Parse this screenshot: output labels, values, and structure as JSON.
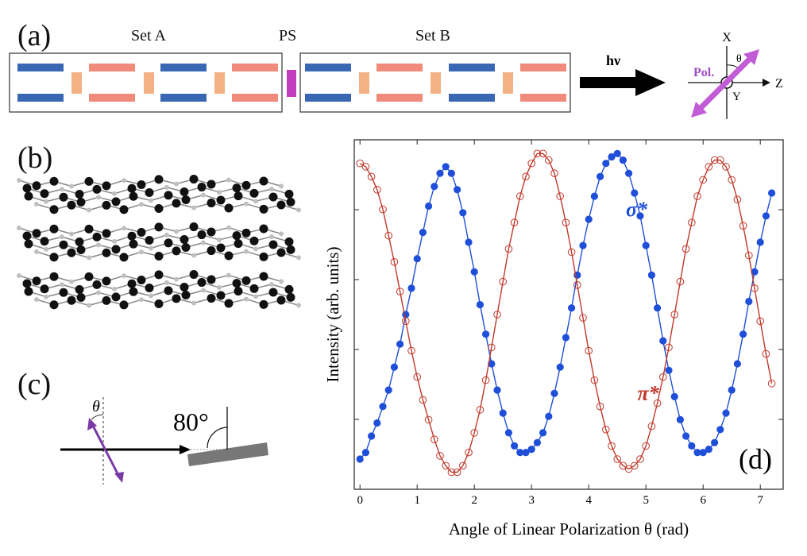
{
  "panels": {
    "a": {
      "label": "(a)",
      "set_a_label": "Set A",
      "ps_label": "PS",
      "set_b_label": "Set B",
      "arrow_label": "hν",
      "pol_label": "Pol.",
      "axis_x": "X",
      "axis_y": "Y",
      "axis_z": "Z",
      "theta_symbol": "θ",
      "colors": {
        "blue_bar": "#3a67b4",
        "red_bar": "#f08a7b",
        "orange_block": "#f3b184",
        "ps_block": "#c23dbf",
        "pol_arrow": "#c25cd6"
      }
    },
    "b": {
      "label": "(b)",
      "atom_color_dark": "#111111",
      "atom_color_light": "#bfbfbf"
    },
    "c": {
      "label": "(c)",
      "theta_symbol": "θ",
      "angle_label": "80°",
      "pol_arrow_color": "#7a3aa6"
    },
    "d": {
      "label": "(d)"
    }
  },
  "chart_data": {
    "type": "scatter",
    "title": "",
    "xlabel": "Angle of Linear Polarization θ (rad)",
    "ylabel": "Intensity (arb. units)",
    "xlim": [
      -0.1,
      7.4
    ],
    "ylim": [
      0,
      1
    ],
    "x_ticks": [
      0,
      1,
      2,
      3,
      4,
      5,
      6,
      7
    ],
    "y_ticks_labeled": false,
    "grid": false,
    "series": [
      {
        "name": "σ*",
        "color": "#1f4fd8",
        "marker": "filled-circle",
        "points": [
          [
            0.0,
            0.06
          ],
          [
            0.1,
            0.08
          ],
          [
            0.2,
            0.13
          ],
          [
            0.3,
            0.17
          ],
          [
            0.4,
            0.22
          ],
          [
            0.5,
            0.27
          ],
          [
            0.6,
            0.34
          ],
          [
            0.7,
            0.41
          ],
          [
            0.8,
            0.5
          ],
          [
            0.9,
            0.58
          ],
          [
            1.0,
            0.67
          ],
          [
            1.1,
            0.75
          ],
          [
            1.2,
            0.83
          ],
          [
            1.3,
            0.89
          ],
          [
            1.4,
            0.93
          ],
          [
            1.5,
            0.95
          ],
          [
            1.6,
            0.93
          ],
          [
            1.7,
            0.88
          ],
          [
            1.8,
            0.81
          ],
          [
            1.9,
            0.72
          ],
          [
            2.0,
            0.63
          ],
          [
            2.1,
            0.53
          ],
          [
            2.2,
            0.44
          ],
          [
            2.3,
            0.35
          ],
          [
            2.4,
            0.27
          ],
          [
            2.5,
            0.2
          ],
          [
            2.6,
            0.14
          ],
          [
            2.7,
            0.1
          ],
          [
            2.8,
            0.08
          ],
          [
            2.9,
            0.08
          ],
          [
            3.0,
            0.09
          ],
          [
            3.1,
            0.11
          ],
          [
            3.2,
            0.14
          ],
          [
            3.3,
            0.19
          ],
          [
            3.4,
            0.26
          ],
          [
            3.5,
            0.34
          ],
          [
            3.6,
            0.43
          ],
          [
            3.7,
            0.52
          ],
          [
            3.8,
            0.62
          ],
          [
            3.9,
            0.71
          ],
          [
            4.0,
            0.79
          ],
          [
            4.1,
            0.86
          ],
          [
            4.2,
            0.92
          ],
          [
            4.3,
            0.96
          ],
          [
            4.4,
            0.98
          ],
          [
            4.5,
            0.99
          ],
          [
            4.6,
            0.97
          ],
          [
            4.7,
            0.93
          ],
          [
            4.8,
            0.87
          ],
          [
            4.9,
            0.8
          ],
          [
            5.0,
            0.71
          ],
          [
            5.1,
            0.62
          ],
          [
            5.2,
            0.52
          ],
          [
            5.3,
            0.42
          ],
          [
            5.4,
            0.33
          ],
          [
            5.5,
            0.25
          ],
          [
            5.6,
            0.18
          ],
          [
            5.7,
            0.13
          ],
          [
            5.8,
            0.1
          ],
          [
            5.9,
            0.08
          ],
          [
            6.0,
            0.08
          ],
          [
            6.1,
            0.09
          ],
          [
            6.2,
            0.11
          ],
          [
            6.3,
            0.15
          ],
          [
            6.4,
            0.2
          ],
          [
            6.5,
            0.27
          ],
          [
            6.6,
            0.35
          ],
          [
            6.7,
            0.44
          ],
          [
            6.8,
            0.54
          ],
          [
            6.9,
            0.63
          ],
          [
            7.0,
            0.72
          ],
          [
            7.1,
            0.8
          ],
          [
            7.2,
            0.87
          ]
        ]
      },
      {
        "name": "π*",
        "color": "#c0392b",
        "marker": "open-circle",
        "points": [
          [
            0.0,
            0.96
          ],
          [
            0.1,
            0.95
          ],
          [
            0.2,
            0.92
          ],
          [
            0.3,
            0.88
          ],
          [
            0.4,
            0.82
          ],
          [
            0.5,
            0.74
          ],
          [
            0.6,
            0.66
          ],
          [
            0.7,
            0.57
          ],
          [
            0.8,
            0.48
          ],
          [
            0.9,
            0.39
          ],
          [
            1.0,
            0.31
          ],
          [
            1.1,
            0.24
          ],
          [
            1.2,
            0.18
          ],
          [
            1.3,
            0.12
          ],
          [
            1.4,
            0.07
          ],
          [
            1.5,
            0.04
          ],
          [
            1.6,
            0.02
          ],
          [
            1.7,
            0.02
          ],
          [
            1.8,
            0.04
          ],
          [
            1.9,
            0.08
          ],
          [
            2.0,
            0.14
          ],
          [
            2.1,
            0.21
          ],
          [
            2.2,
            0.3
          ],
          [
            2.3,
            0.4
          ],
          [
            2.4,
            0.5
          ],
          [
            2.5,
            0.6
          ],
          [
            2.6,
            0.7
          ],
          [
            2.7,
            0.78
          ],
          [
            2.8,
            0.86
          ],
          [
            2.9,
            0.92
          ],
          [
            3.0,
            0.96
          ],
          [
            3.1,
            0.99
          ],
          [
            3.2,
            0.99
          ],
          [
            3.3,
            0.97
          ],
          [
            3.4,
            0.93
          ],
          [
            3.5,
            0.86
          ],
          [
            3.6,
            0.78
          ],
          [
            3.7,
            0.69
          ],
          [
            3.8,
            0.59
          ],
          [
            3.9,
            0.49
          ],
          [
            4.0,
            0.39
          ],
          [
            4.1,
            0.3
          ],
          [
            4.2,
            0.22
          ],
          [
            4.3,
            0.15
          ],
          [
            4.4,
            0.1
          ],
          [
            4.5,
            0.06
          ],
          [
            4.6,
            0.04
          ],
          [
            4.7,
            0.03
          ],
          [
            4.8,
            0.04
          ],
          [
            4.9,
            0.06
          ],
          [
            5.0,
            0.1
          ],
          [
            5.1,
            0.16
          ],
          [
            5.2,
            0.23
          ],
          [
            5.3,
            0.31
          ],
          [
            5.4,
            0.4
          ],
          [
            5.5,
            0.5
          ],
          [
            5.6,
            0.6
          ],
          [
            5.7,
            0.7
          ],
          [
            5.8,
            0.78
          ],
          [
            5.9,
            0.86
          ],
          [
            6.0,
            0.91
          ],
          [
            6.1,
            0.95
          ],
          [
            6.2,
            0.97
          ],
          [
            6.3,
            0.97
          ],
          [
            6.4,
            0.95
          ],
          [
            6.5,
            0.91
          ],
          [
            6.6,
            0.85
          ],
          [
            6.7,
            0.77
          ],
          [
            6.8,
            0.68
          ],
          [
            6.9,
            0.58
          ],
          [
            7.0,
            0.48
          ],
          [
            7.1,
            0.38
          ],
          [
            7.2,
            0.29
          ]
        ]
      }
    ],
    "annotations": [
      {
        "text": "σ*",
        "x": 4.65,
        "y": 0.8,
        "color": "#1f4fd8"
      },
      {
        "text": "π*",
        "x": 4.85,
        "y": 0.24,
        "color": "#c0392b"
      }
    ]
  }
}
